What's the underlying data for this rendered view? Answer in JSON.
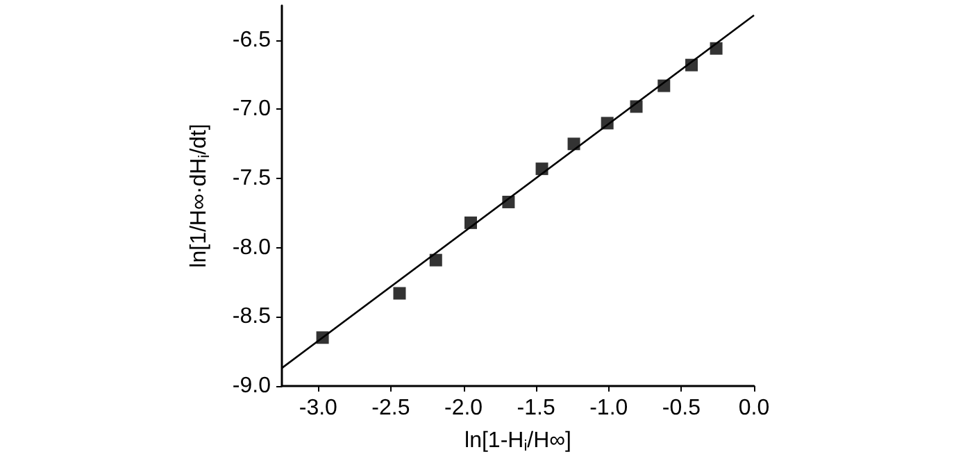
{
  "chart_data": {
    "type": "scatter",
    "xlabel": "ln[1-H$_{i}$/H∞]",
    "ylabel": "ln[1/H∞·dH$_{i}$/dt]",
    "xlim": [
      -3.25,
      0
    ],
    "xticks": [
      {
        "value": -3,
        "label": "-3.0"
      },
      {
        "value": -2.5,
        "label": "-2.5"
      },
      {
        "value": -2,
        "label": "-2.0"
      },
      {
        "value": -1.5,
        "label": "-1.5"
      },
      {
        "value": -1,
        "label": "-1.0"
      },
      {
        "value": -0.5,
        "label": "-0.5"
      },
      {
        "value": 0,
        "label": "0.0"
      }
    ],
    "ylim": [
      -9,
      -6.25
    ],
    "yticks": [
      {
        "value": -9,
        "label": "-9.0"
      },
      {
        "value": -8.5,
        "label": "-8.5"
      },
      {
        "value": -8,
        "label": "-8.0"
      },
      {
        "value": -7.5,
        "label": "-7.5"
      },
      {
        "value": -7,
        "label": "-7.0"
      },
      {
        "value": -6.5,
        "label": "-6.5"
      }
    ],
    "grid": false,
    "marker": "square",
    "series": [
      {
        "color": "#000000",
        "x": [
          -2.97,
          -2.44,
          -2.19,
          -1.95,
          -1.69,
          -1.46,
          -1.24,
          -1.01,
          -0.81,
          -0.62,
          -0.43,
          -0.26
        ],
        "values": [
          -8.65,
          -8.33,
          -8.09,
          -7.82,
          -7.67,
          -7.43,
          -7.25,
          -7.1,
          -6.98,
          -6.83,
          -6.68,
          -6.56
        ]
      },
      {
        "type": "line",
        "marker": "none",
        "color": "#000000",
        "x": [
          -3.25,
          0
        ],
        "values": [
          -8.87,
          -6.32
        ]
      }
    ]
  }
}
